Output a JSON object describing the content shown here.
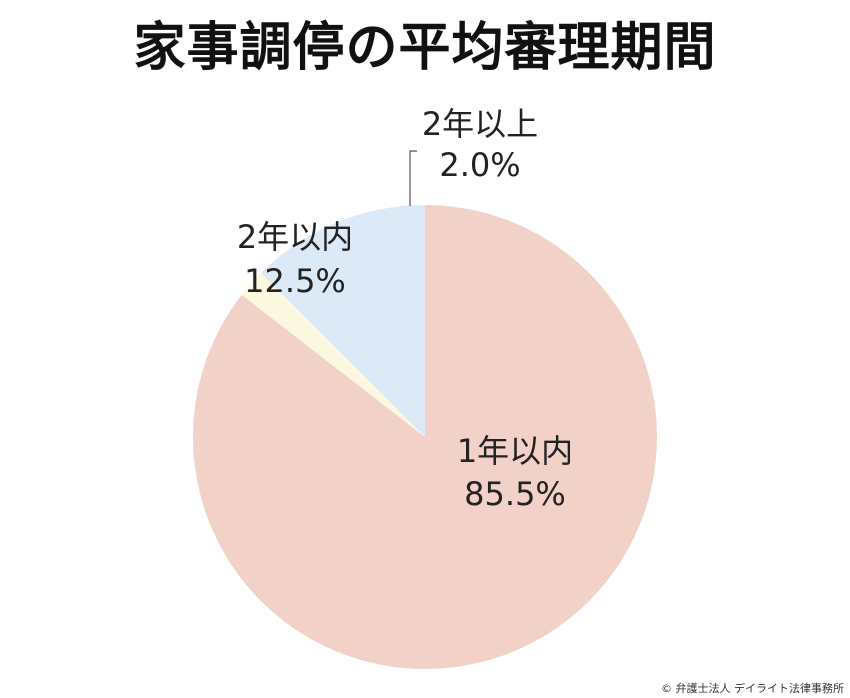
{
  "chart_data": {
    "type": "pie",
    "title": "家事調停の平均審理期間",
    "slices": [
      {
        "label": "1年以内",
        "value": 85.5,
        "value_label": "85.5%",
        "color": "#f2d1c8"
      },
      {
        "label": "2年以内",
        "value": 12.5,
        "value_label": "12.5%",
        "color": "#dce9f6"
      },
      {
        "label": "2年以上",
        "value": 2.0,
        "value_label": "2.0%",
        "color": "#fbf8df"
      }
    ],
    "start_angle": "12 o'clock",
    "direction": "clockwise",
    "legend": "none"
  },
  "footer": {
    "copyright": "© 弁護士法人 デイライト法律事務所"
  }
}
